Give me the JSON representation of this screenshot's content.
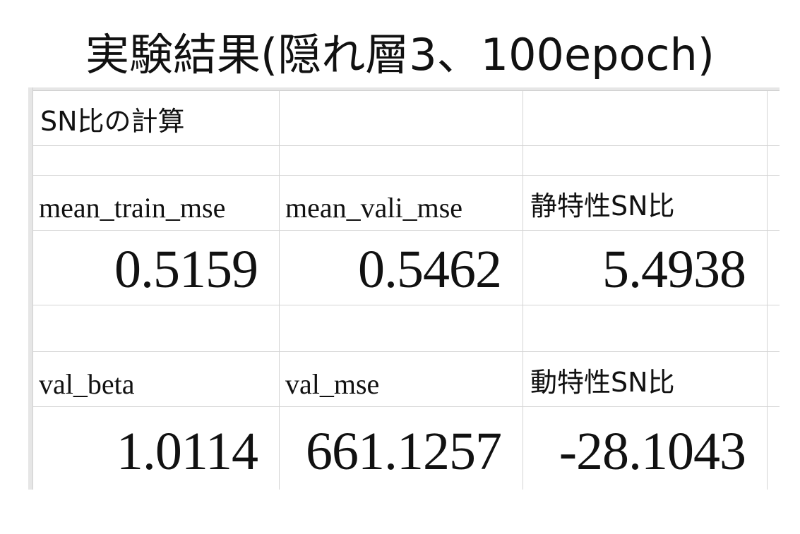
{
  "slide": {
    "title": "実験結果(隠れ層3、100epoch)"
  },
  "sheet": {
    "section_label": "SN比の計算",
    "static_block": {
      "headers": [
        "mean_train_mse",
        "mean_vali_mse",
        "静特性SN比"
      ],
      "values": [
        "0.5159",
        "0.5462",
        "5.4938"
      ]
    },
    "dynamic_block": {
      "headers": [
        "val_beta",
        "val_mse",
        "動特性SN比"
      ],
      "values": [
        "1.0114",
        "661.1257",
        "-28.1043"
      ]
    }
  }
}
